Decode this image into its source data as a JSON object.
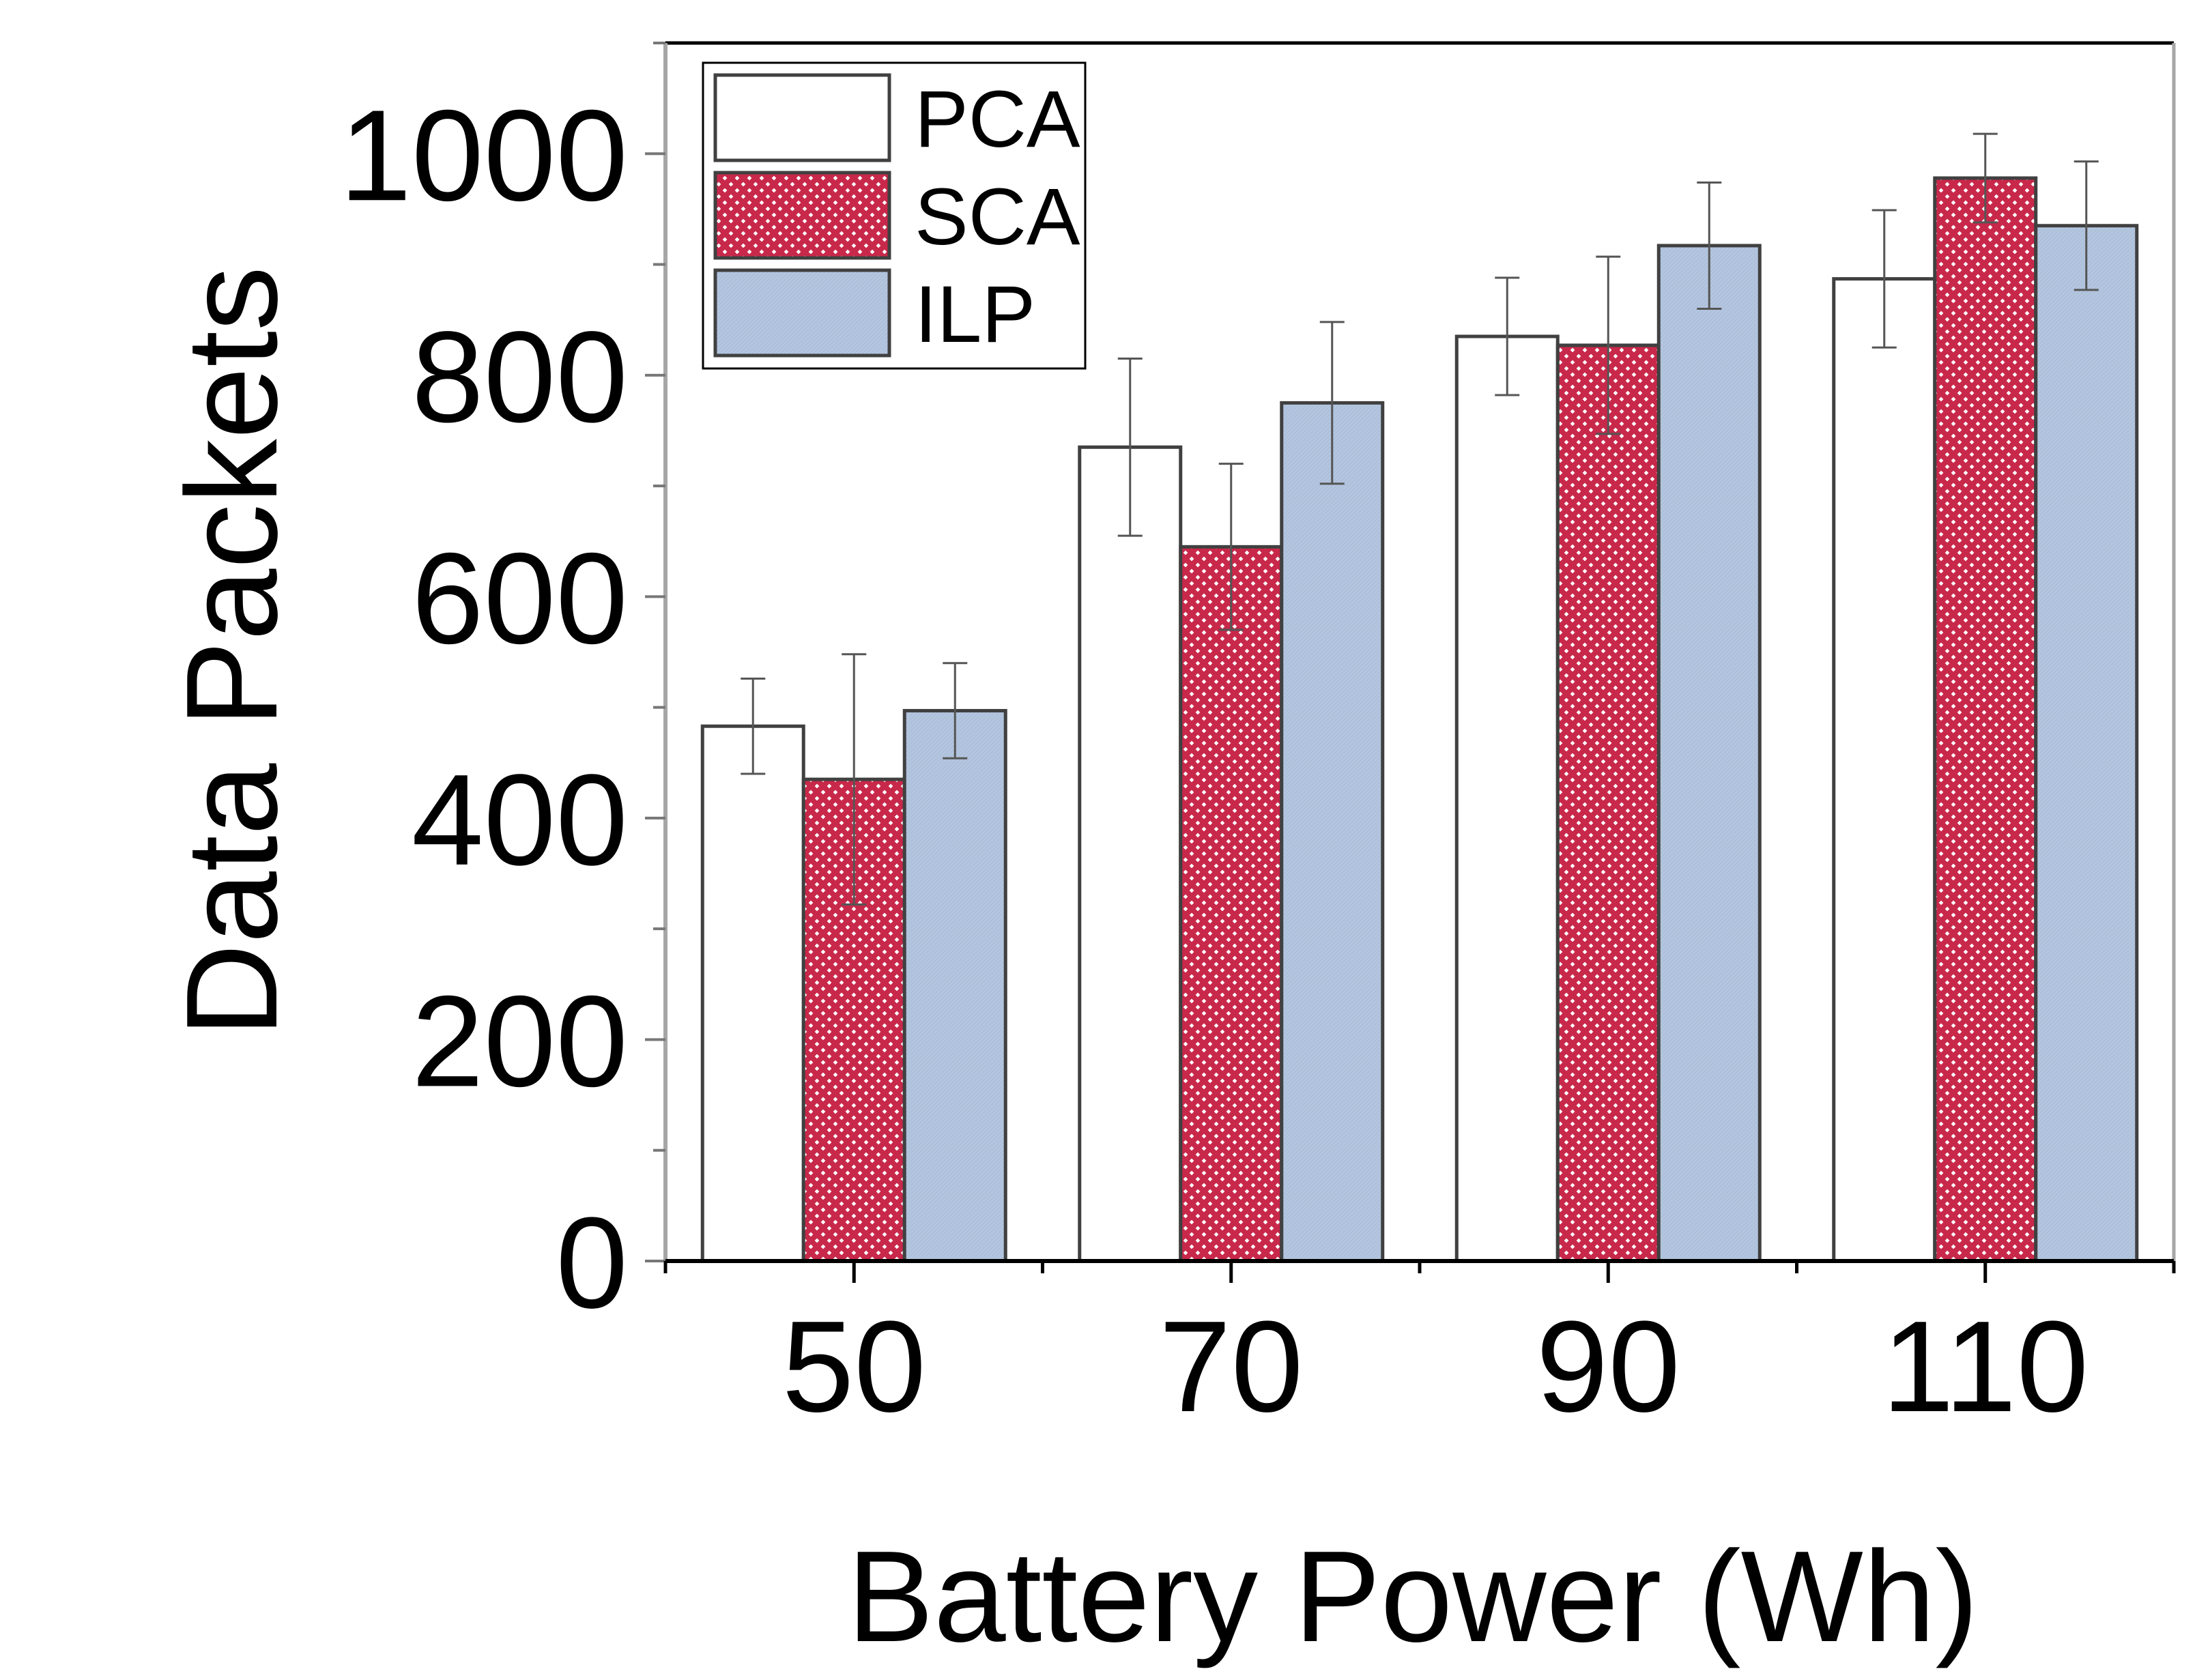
{
  "chart_data": {
    "type": "bar",
    "title": "",
    "xlabel": "Battery Power (Wh)",
    "ylabel": "Data Packets",
    "categories": [
      "50",
      "70",
      "90",
      "110"
    ],
    "ylim": [
      0,
      1100
    ],
    "yticks": [
      "0",
      "200",
      "400",
      "600",
      "800",
      "1000"
    ],
    "yminor_step": 100,
    "grid": false,
    "legend_position": "top-left",
    "series": [
      {
        "name": "PCA",
        "values": [
          483,
          735,
          835,
          887
        ],
        "errors": [
          43,
          80,
          53,
          62
        ],
        "fill": "#ffffff",
        "pattern": "none"
      },
      {
        "name": "SCA",
        "values": [
          435,
          645,
          827,
          978
        ],
        "errors": [
          113,
          75,
          80,
          40
        ],
        "fill": "#c8284a",
        "pattern": "crosshatch"
      },
      {
        "name": "ILP",
        "values": [
          497,
          775,
          917,
          935
        ],
        "errors": [
          43,
          73,
          57,
          58
        ],
        "fill": "#b4c6df",
        "pattern": "fine"
      }
    ],
    "colors": {
      "axis": "#000000",
      "frame": "#a6a6a6",
      "bar_edge": "#404040",
      "error_bar": "#555555"
    }
  }
}
